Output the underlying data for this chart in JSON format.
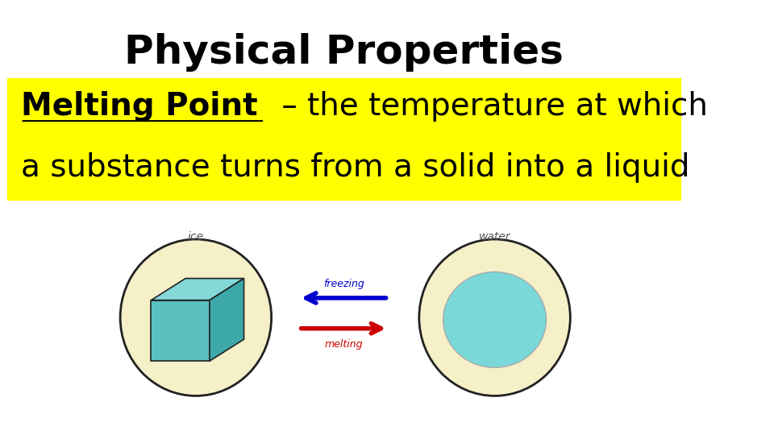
{
  "title": "Physical Properties",
  "title_fontsize": 36,
  "bg_color": "#ffffff",
  "highlight_color": "#ffff00",
  "text_line1_bold": "Melting Point",
  "text_line1_rest": " – the temperature at which",
  "text_line2": "a substance turns from a solid into a liquid",
  "text_fontsize": 28,
  "label_ice": "ice",
  "label_water": "water",
  "label_freezing": "freezing",
  "label_melting": "melting",
  "ellipse_color": "#f5f0c8",
  "ellipse_edge": "#222222",
  "ice_front_color": "#5abfbf",
  "ice_top_color": "#85d8d8",
  "ice_right_color": "#3da8a8",
  "water_ellipse_color": "#7ad8d8",
  "arrow_blue": "#0000cc",
  "arrow_red": "#cc0000",
  "label_color_ice": "#555555",
  "label_color_water": "#555555"
}
